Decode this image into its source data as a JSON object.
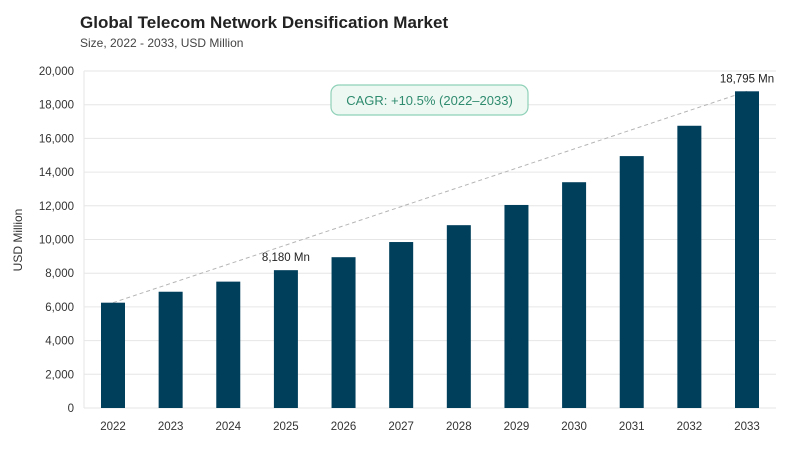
{
  "chart_data": {
    "type": "bar",
    "title": "Global Telecom Network Densification Market",
    "subtitle": "Size, 2022 - 2033, USD Million",
    "ylabel": "USD Million",
    "xlabel": "",
    "categories": [
      "2022",
      "2023",
      "2024",
      "2025",
      "2026",
      "2027",
      "2028",
      "2029",
      "2030",
      "2031",
      "2032",
      "2033"
    ],
    "values": [
      6250,
      6900,
      7500,
      8180,
      8950,
      9850,
      10850,
      12050,
      13400,
      14950,
      16750,
      18795
    ],
    "ylim": [
      0,
      20000
    ],
    "yticks": [
      0,
      2000,
      4000,
      6000,
      8000,
      10000,
      12000,
      14000,
      16000,
      18000,
      20000
    ],
    "ytick_labels": [
      "0",
      "2,000",
      "4,000",
      "6,000",
      "8,000",
      "10,000",
      "12,000",
      "14,000",
      "16,000",
      "18,000",
      "20,000"
    ],
    "grid": true,
    "annotations": [
      {
        "category": "2025",
        "label": "8,180 Mn"
      },
      {
        "category": "2033",
        "label": "18,795 Mn"
      }
    ],
    "cagr_label": "CAGR: +10.5% (2022–2033)",
    "colors": {
      "bar": "#003f5c",
      "grid": "#e6e6e6",
      "trend": "#b5b5b5",
      "cagr_text": "#2e8b6e",
      "cagr_border": "#8fd1b8",
      "cagr_fill": "#eef8f3",
      "title": "#222222",
      "text": "#333333"
    }
  }
}
